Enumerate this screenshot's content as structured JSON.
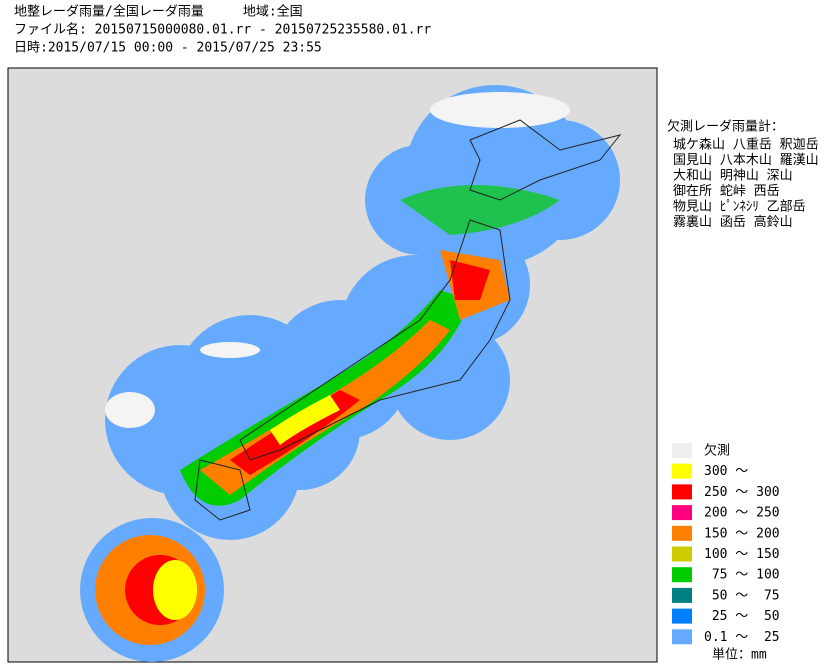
{
  "header": {
    "title": "地整レーダ雨量/全国レーダ雨量　　　地域:全国",
    "file": "ファイル名: 20150715000080.01.rr - 20150725235580.01.rr",
    "period": "日時:2015/07/15 00:00 - 2015/07/25 23:55"
  },
  "missing": {
    "title": "欠測レーダ雨量計：",
    "rows": [
      "城ケ森山 八重岳 釈迦岳",
      "国見山 八本木山 羅漢山",
      "大和山 明神山 深山",
      "御在所 蛇峠 西岳",
      "物見山 ﾋﾟﾝﾈｼﾘ 乙部岳",
      "霧裏山 函岳 高鈴山"
    ]
  },
  "legend": {
    "items": [
      {
        "label": "欠測",
        "color": "#eeeeee"
      },
      {
        "label": "300 ～",
        "color": "#ffff00"
      },
      {
        "label": "250 ～ 300",
        "color": "#ff0000"
      },
      {
        "label": "200 ～ 250",
        "color": "#ff0080"
      },
      {
        "label": "150 ～ 200",
        "color": "#ff8000"
      },
      {
        "label": "100 ～ 150",
        "color": "#cccc00"
      },
      {
        "label": " 75 ～ 100",
        "color": "#00cc00"
      },
      {
        "label": " 50 ～  75",
        "color": "#008080"
      },
      {
        "label": " 25 ～  50",
        "color": "#0080ff"
      },
      {
        "label": "0.1 ～  25",
        "color": "#66aaff"
      }
    ],
    "unit": "単位：mm"
  }
}
